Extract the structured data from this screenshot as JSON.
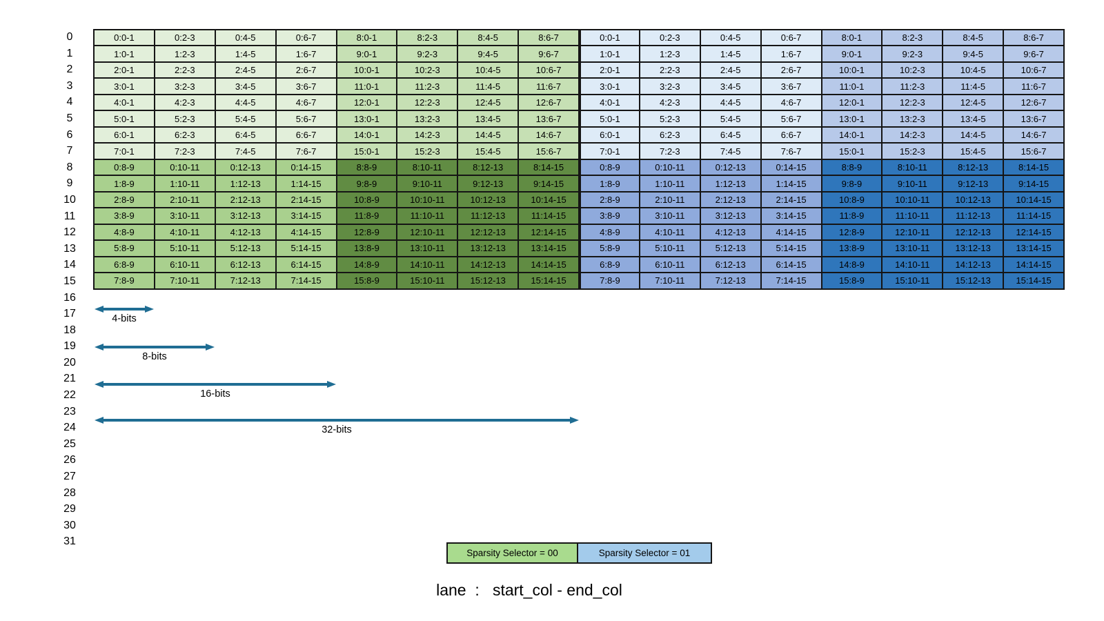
{
  "row_labels": [
    "0",
    "1",
    "2",
    "3",
    "4",
    "5",
    "6",
    "7",
    "8",
    "9",
    "10",
    "11",
    "12",
    "13",
    "14",
    "15",
    "16",
    "17",
    "18",
    "19",
    "20",
    "21",
    "22",
    "23",
    "24",
    "25",
    "26",
    "27",
    "28",
    "29",
    "30",
    "31"
  ],
  "grid": {
    "rows": [
      [
        "0:0-1",
        "0:2-3",
        "0:4-5",
        "0:6-7",
        "8:0-1",
        "8:2-3",
        "8:4-5",
        "8:6-7",
        "0:0-1",
        "0:2-3",
        "0:4-5",
        "0:6-7",
        "8:0-1",
        "8:2-3",
        "8:4-5",
        "8:6-7"
      ],
      [
        "1:0-1",
        "1:2-3",
        "1:4-5",
        "1:6-7",
        "9:0-1",
        "9:2-3",
        "9:4-5",
        "9:6-7",
        "1:0-1",
        "1:2-3",
        "1:4-5",
        "1:6-7",
        "9:0-1",
        "9:2-3",
        "9:4-5",
        "9:6-7"
      ],
      [
        "2:0-1",
        "2:2-3",
        "2:4-5",
        "2:6-7",
        "10:0-1",
        "10:2-3",
        "10:4-5",
        "10:6-7",
        "2:0-1",
        "2:2-3",
        "2:4-5",
        "2:6-7",
        "10:0-1",
        "10:2-3",
        "10:4-5",
        "10:6-7"
      ],
      [
        "3:0-1",
        "3:2-3",
        "3:4-5",
        "3:6-7",
        "11:0-1",
        "11:2-3",
        "11:4-5",
        "11:6-7",
        "3:0-1",
        "3:2-3",
        "3:4-5",
        "3:6-7",
        "11:0-1",
        "11:2-3",
        "11:4-5",
        "11:6-7"
      ],
      [
        "4:0-1",
        "4:2-3",
        "4:4-5",
        "4:6-7",
        "12:0-1",
        "12:2-3",
        "12:4-5",
        "12:6-7",
        "4:0-1",
        "4:2-3",
        "4:4-5",
        "4:6-7",
        "12:0-1",
        "12:2-3",
        "12:4-5",
        "12:6-7"
      ],
      [
        "5:0-1",
        "5:2-3",
        "5:4-5",
        "5:6-7",
        "13:0-1",
        "13:2-3",
        "13:4-5",
        "13:6-7",
        "5:0-1",
        "5:2-3",
        "5:4-5",
        "5:6-7",
        "13:0-1",
        "13:2-3",
        "13:4-5",
        "13:6-7"
      ],
      [
        "6:0-1",
        "6:2-3",
        "6:4-5",
        "6:6-7",
        "14:0-1",
        "14:2-3",
        "14:4-5",
        "14:6-7",
        "6:0-1",
        "6:2-3",
        "6:4-5",
        "6:6-7",
        "14:0-1",
        "14:2-3",
        "14:4-5",
        "14:6-7"
      ],
      [
        "7:0-1",
        "7:2-3",
        "7:4-5",
        "7:6-7",
        "15:0-1",
        "15:2-3",
        "15:4-5",
        "15:6-7",
        "7:0-1",
        "7:2-3",
        "7:4-5",
        "7:6-7",
        "15:0-1",
        "15:2-3",
        "15:4-5",
        "15:6-7"
      ],
      [
        "0:8-9",
        "0:10-11",
        "0:12-13",
        "0:14-15",
        "8:8-9",
        "8:10-11",
        "8:12-13",
        "8:14-15",
        "0:8-9",
        "0:10-11",
        "0:12-13",
        "0:14-15",
        "8:8-9",
        "8:10-11",
        "8:12-13",
        "8:14-15"
      ],
      [
        "1:8-9",
        "1:10-11",
        "1:12-13",
        "1:14-15",
        "9:8-9",
        "9:10-11",
        "9:12-13",
        "9:14-15",
        "1:8-9",
        "1:10-11",
        "1:12-13",
        "1:14-15",
        "9:8-9",
        "9:10-11",
        "9:12-13",
        "9:14-15"
      ],
      [
        "2:8-9",
        "2:10-11",
        "2:12-13",
        "2:14-15",
        "10:8-9",
        "10:10-11",
        "10:12-13",
        "10:14-15",
        "2:8-9",
        "2:10-11",
        "2:12-13",
        "2:14-15",
        "10:8-9",
        "10:10-11",
        "10:12-13",
        "10:14-15"
      ],
      [
        "3:8-9",
        "3:10-11",
        "3:12-13",
        "3:14-15",
        "11:8-9",
        "11:10-11",
        "11:12-13",
        "11:14-15",
        "3:8-9",
        "3:10-11",
        "3:12-13",
        "3:14-15",
        "11:8-9",
        "11:10-11",
        "11:12-13",
        "11:14-15"
      ],
      [
        "4:8-9",
        "4:10-11",
        "4:12-13",
        "4:14-15",
        "12:8-9",
        "12:10-11",
        "12:12-13",
        "12:14-15",
        "4:8-9",
        "4:10-11",
        "4:12-13",
        "4:14-15",
        "12:8-9",
        "12:10-11",
        "12:12-13",
        "12:14-15"
      ],
      [
        "5:8-9",
        "5:10-11",
        "5:12-13",
        "5:14-15",
        "13:8-9",
        "13:10-11",
        "13:12-13",
        "13:14-15",
        "5:8-9",
        "5:10-11",
        "5:12-13",
        "5:14-15",
        "13:8-9",
        "13:10-11",
        "13:12-13",
        "13:14-15"
      ],
      [
        "6:8-9",
        "6:10-11",
        "6:12-13",
        "6:14-15",
        "14:8-9",
        "14:10-11",
        "14:12-13",
        "14:14-15",
        "6:8-9",
        "6:10-11",
        "6:12-13",
        "6:14-15",
        "14:8-9",
        "14:10-11",
        "14:12-13",
        "14:14-15"
      ],
      [
        "7:8-9",
        "7:10-11",
        "7:12-13",
        "7:14-15",
        "15:8-9",
        "15:10-11",
        "15:12-13",
        "15:14-15",
        "7:8-9",
        "7:10-11",
        "7:12-13",
        "7:14-15",
        "15:8-9",
        "15:10-11",
        "15:12-13",
        "15:14-15"
      ]
    ]
  },
  "colors": {
    "green_light": "#E2EFDA",
    "green_mid": "#C6E0B4",
    "green": "#A9D08E",
    "green_dark": "#618C43",
    "blue_light": "#DEEBF7",
    "blue_mid": "#B7C9E9",
    "blue": "#8FAADC",
    "blue_dark": "#2F76BB",
    "legend_green": "#A9DB8E",
    "legend_blue": "#A3CBEB",
    "arrow": "#1F6D93",
    "border": "#151515"
  },
  "arrows": [
    {
      "label": "4-bits",
      "span_cols": 1
    },
    {
      "label": "8-bits",
      "span_cols": 2
    },
    {
      "label": "16-bits",
      "span_cols": 4
    },
    {
      "label": "32-bits",
      "span_cols": 8
    }
  ],
  "legend": [
    {
      "label": "Sparsity Selector = 00",
      "color_key": "legend_green"
    },
    {
      "label": "Sparsity Selector = 01",
      "color_key": "legend_blue"
    }
  ],
  "caption": "lane  :   start_col - end_col"
}
